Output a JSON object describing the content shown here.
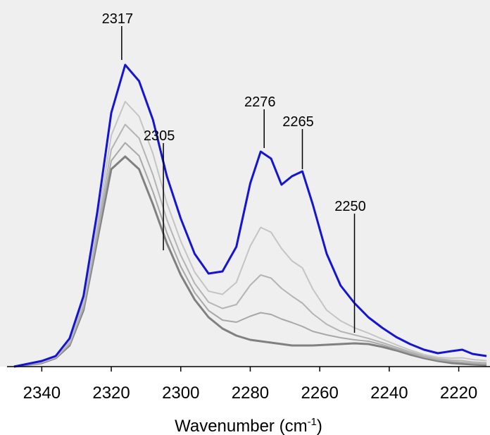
{
  "chart_data": {
    "type": "line",
    "x_label": {
      "text": "Wavenumber (cm",
      "superscript": "-1",
      "suffix": ")"
    },
    "x": [
      2348,
      2340,
      2336,
      2332,
      2328,
      2324,
      2320,
      2316,
      2312,
      2308,
      2304,
      2300,
      2296,
      2292,
      2288,
      2284,
      2280,
      2277,
      2274,
      2271,
      2268,
      2265,
      2262,
      2258,
      2254,
      2250,
      2246,
      2242,
      2238,
      2234,
      2230,
      2226,
      2222,
      2219,
      2216,
      2212
    ],
    "xlim": [
      2350,
      2211
    ],
    "xticks": [
      2340,
      2320,
      2300,
      2280,
      2260,
      2240,
      2220
    ],
    "ylim": [
      0,
      1.04
    ],
    "grid": false,
    "series": [
      {
        "color": "#808080",
        "values": [
          0,
          0.01,
          0.024,
          0.06,
          0.16,
          0.36,
          0.56,
          0.596,
          0.56,
          0.46,
          0.35,
          0.26,
          0.19,
          0.14,
          0.108,
          0.088,
          0.076,
          0.072,
          0.068,
          0.064,
          0.06,
          0.06,
          0.06,
          0.062,
          0.064,
          0.066,
          0.064,
          0.056,
          0.046,
          0.034,
          0.024,
          0.016,
          0.01,
          0.008,
          0.006,
          0.004
        ]
      },
      {
        "color": "#a8a8a8",
        "values": [
          0,
          0.011,
          0.025,
          0.063,
          0.166,
          0.372,
          0.584,
          0.635,
          0.598,
          0.496,
          0.379,
          0.284,
          0.21,
          0.159,
          0.132,
          0.126,
          0.143,
          0.153,
          0.148,
          0.135,
          0.125,
          0.114,
          0.1,
          0.09,
          0.082,
          0.076,
          0.072,
          0.062,
          0.05,
          0.038,
          0.027,
          0.019,
          0.014,
          0.012,
          0.009,
          0.007
        ]
      },
      {
        "color": "#b4b4b4",
        "values": [
          0,
          0.012,
          0.026,
          0.067,
          0.174,
          0.388,
          0.616,
          0.687,
          0.648,
          0.544,
          0.417,
          0.316,
          0.236,
          0.183,
          0.165,
          0.176,
          0.231,
          0.26,
          0.251,
          0.222,
          0.2,
          0.18,
          0.15,
          0.12,
          0.1,
          0.09,
          0.08,
          0.068,
          0.055,
          0.042,
          0.03,
          0.022,
          0.018,
          0.017,
          0.013,
          0.011
        ]
      },
      {
        "color": "#c4c4c4",
        "values": [
          0,
          0.014,
          0.028,
          0.072,
          0.184,
          0.408,
          0.656,
          0.752,
          0.71,
          0.604,
          0.464,
          0.356,
          0.268,
          0.214,
          0.205,
          0.239,
          0.342,
          0.395,
          0.381,
          0.335,
          0.3,
          0.28,
          0.22,
          0.16,
          0.13,
          0.11,
          0.095,
          0.078,
          0.062,
          0.047,
          0.034,
          0.026,
          0.024,
          0.025,
          0.02,
          0.017
        ]
      },
      {
        "color": "#1414d2",
        "values": [
          0,
          0.016,
          0.03,
          0.08,
          0.2,
          0.44,
          0.72,
          0.856,
          0.81,
          0.7,
          0.54,
          0.42,
          0.32,
          0.264,
          0.27,
          0.34,
          0.52,
          0.61,
          0.59,
          0.516,
          0.54,
          0.554,
          0.46,
          0.32,
          0.23,
          0.18,
          0.14,
          0.11,
          0.084,
          0.064,
          0.048,
          0.038,
          0.044,
          0.048,
          0.036,
          0.03
        ]
      }
    ],
    "annotations": [
      {
        "label": "2317",
        "x": 2317
      },
      {
        "label": "2305",
        "x": 2305
      },
      {
        "label": "2276",
        "x": 2276
      },
      {
        "label": "2265",
        "x": 2265
      },
      {
        "label": "2250",
        "x": 2250
      }
    ]
  }
}
